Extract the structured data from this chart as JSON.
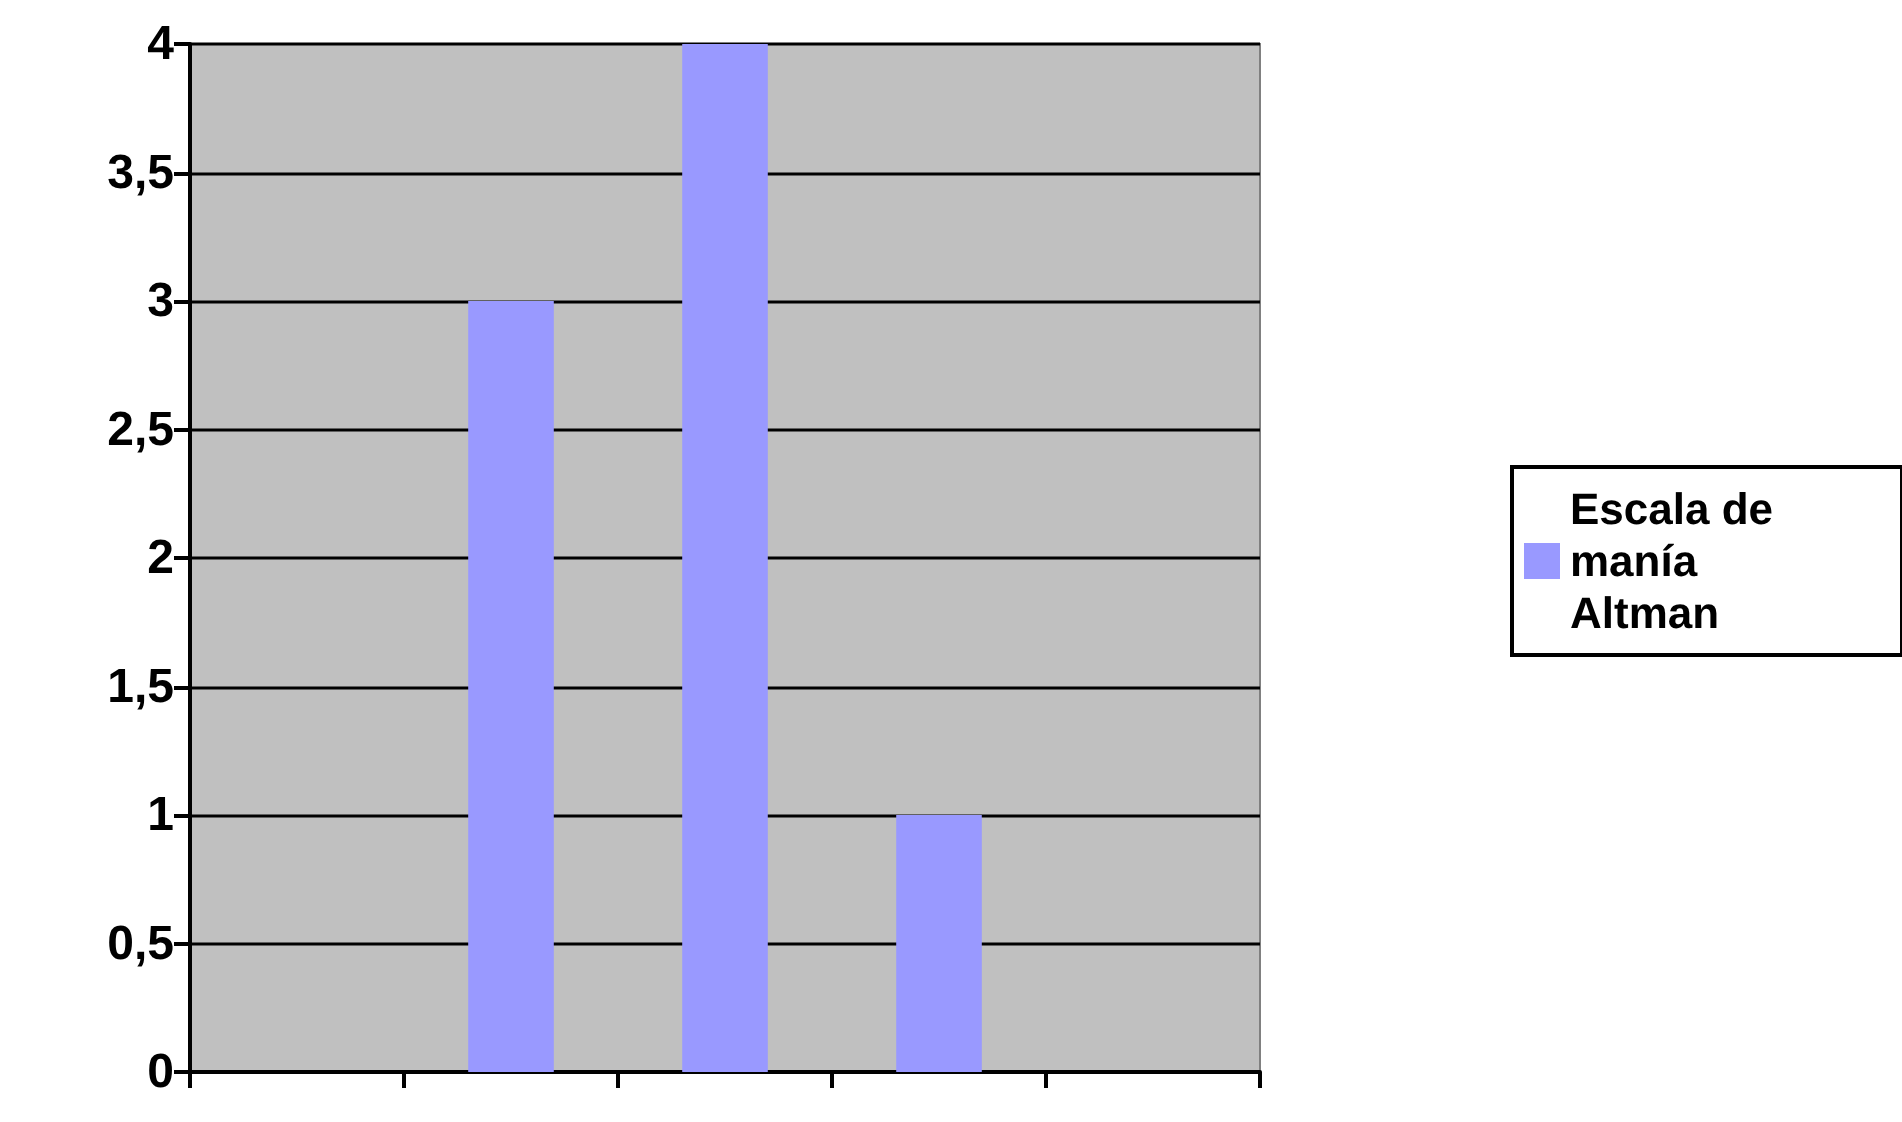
{
  "chart_data": {
    "type": "bar",
    "categories": [
      null,
      null,
      null,
      null,
      null
    ],
    "series": [
      {
        "name": "Escala de manía Altman",
        "color": "#9999ff",
        "values": [
          0,
          3,
          4,
          1,
          0
        ]
      }
    ],
    "ylim": [
      0,
      4
    ],
    "yticks": [
      0,
      {
        "value": 0.5,
        "label": "0,5"
      },
      1,
      {
        "value": 1.5,
        "label": "1,5"
      },
      2,
      {
        "value": 2.5,
        "label": "2,5"
      },
      3,
      {
        "value": 3.5,
        "label": "3,5"
      },
      4
    ],
    "grid": "y",
    "legend": "right"
  }
}
